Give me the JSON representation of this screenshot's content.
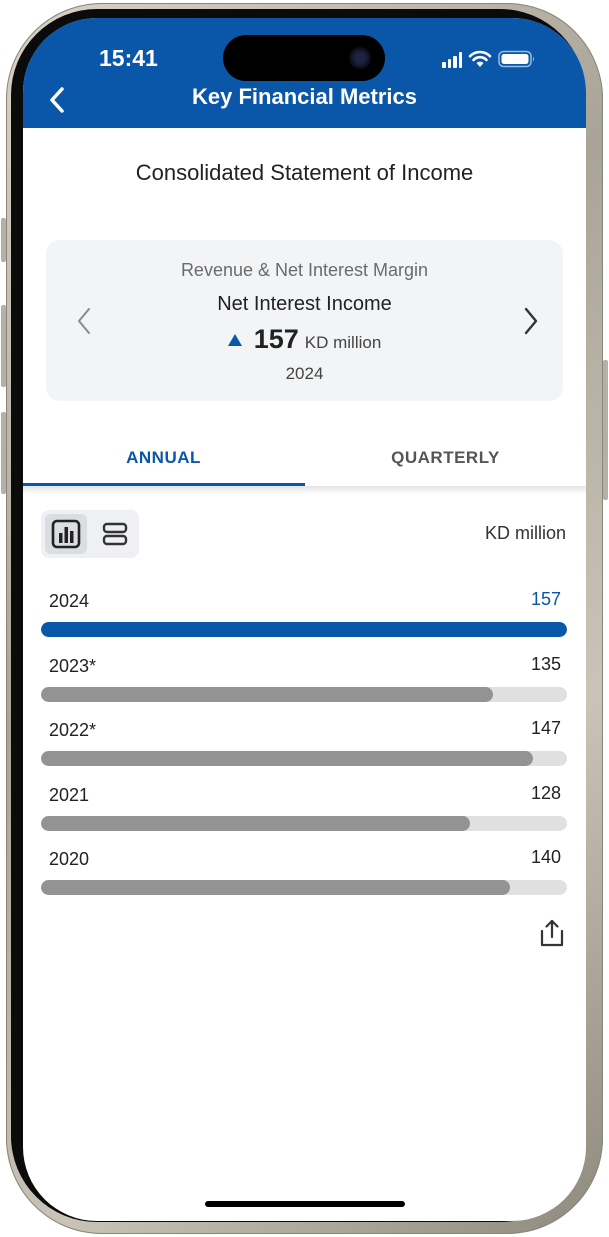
{
  "status": {
    "time": "15:41"
  },
  "nav": {
    "title": "Key Financial Metrics"
  },
  "statement": {
    "title": "Consolidated Statement of Income"
  },
  "metric_card": {
    "category": "Revenue & Net Interest Margin",
    "metric": "Net Interest Income",
    "value": "157",
    "unit": "KD million",
    "year": "2024",
    "trend": "up"
  },
  "tabs": [
    {
      "label": "ANNUAL",
      "active": true
    },
    {
      "label": "QUARTERLY",
      "active": false
    }
  ],
  "units_label": "KD million",
  "colors": {
    "accent": "#0a56a8",
    "bar": "#939393",
    "track": "#e0e0e0"
  },
  "chart_data": {
    "type": "bar",
    "categories": [
      "2024",
      "2023*",
      "2022*",
      "2021",
      "2020"
    ],
    "values": [
      157,
      135,
      147,
      128,
      140
    ],
    "highlight_category": "2024",
    "xlim": [
      0,
      157
    ]
  },
  "icons": {
    "back": "chevron-left-icon",
    "prev": "chevron-left-icon",
    "next": "chevron-right-icon",
    "chart_view": "bar-chart-icon",
    "list_view": "list-icon",
    "share": "share-icon"
  }
}
